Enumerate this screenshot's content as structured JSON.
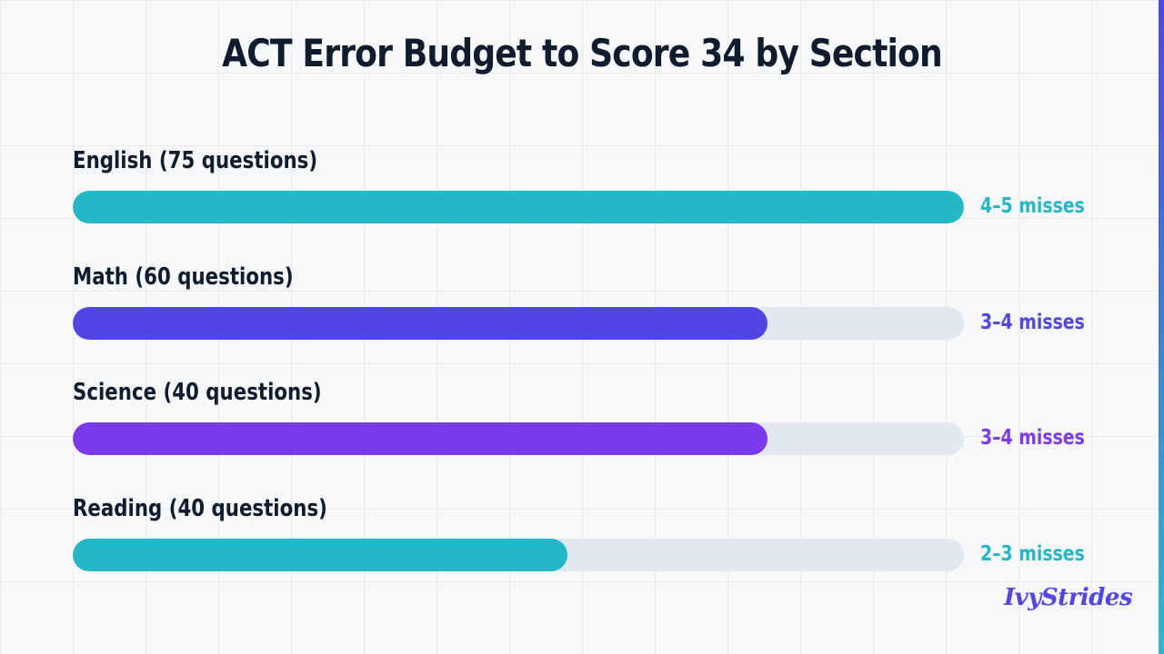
{
  "chart_data": {
    "type": "bar",
    "orientation": "horizontal",
    "title": "ACT Error Budget to Score 34 by Section",
    "categories": [
      "English (75 questions)",
      "Math (60 questions)",
      "Science (40 questions)",
      "Reading (40 questions)"
    ],
    "values": [
      1.0,
      0.78,
      0.78,
      0.555
    ],
    "value_labels": [
      "4–5 misses",
      "3–4 misses",
      "3–4 misses",
      "2–3 misses"
    ],
    "colors": [
      "#22b8c8",
      "#4f46e5",
      "#7c3aed",
      "#22b8c8"
    ],
    "xlim": [
      0,
      1
    ],
    "grid": true,
    "legend": "none"
  },
  "branding": {
    "logo_text": "IvyStrides"
  }
}
